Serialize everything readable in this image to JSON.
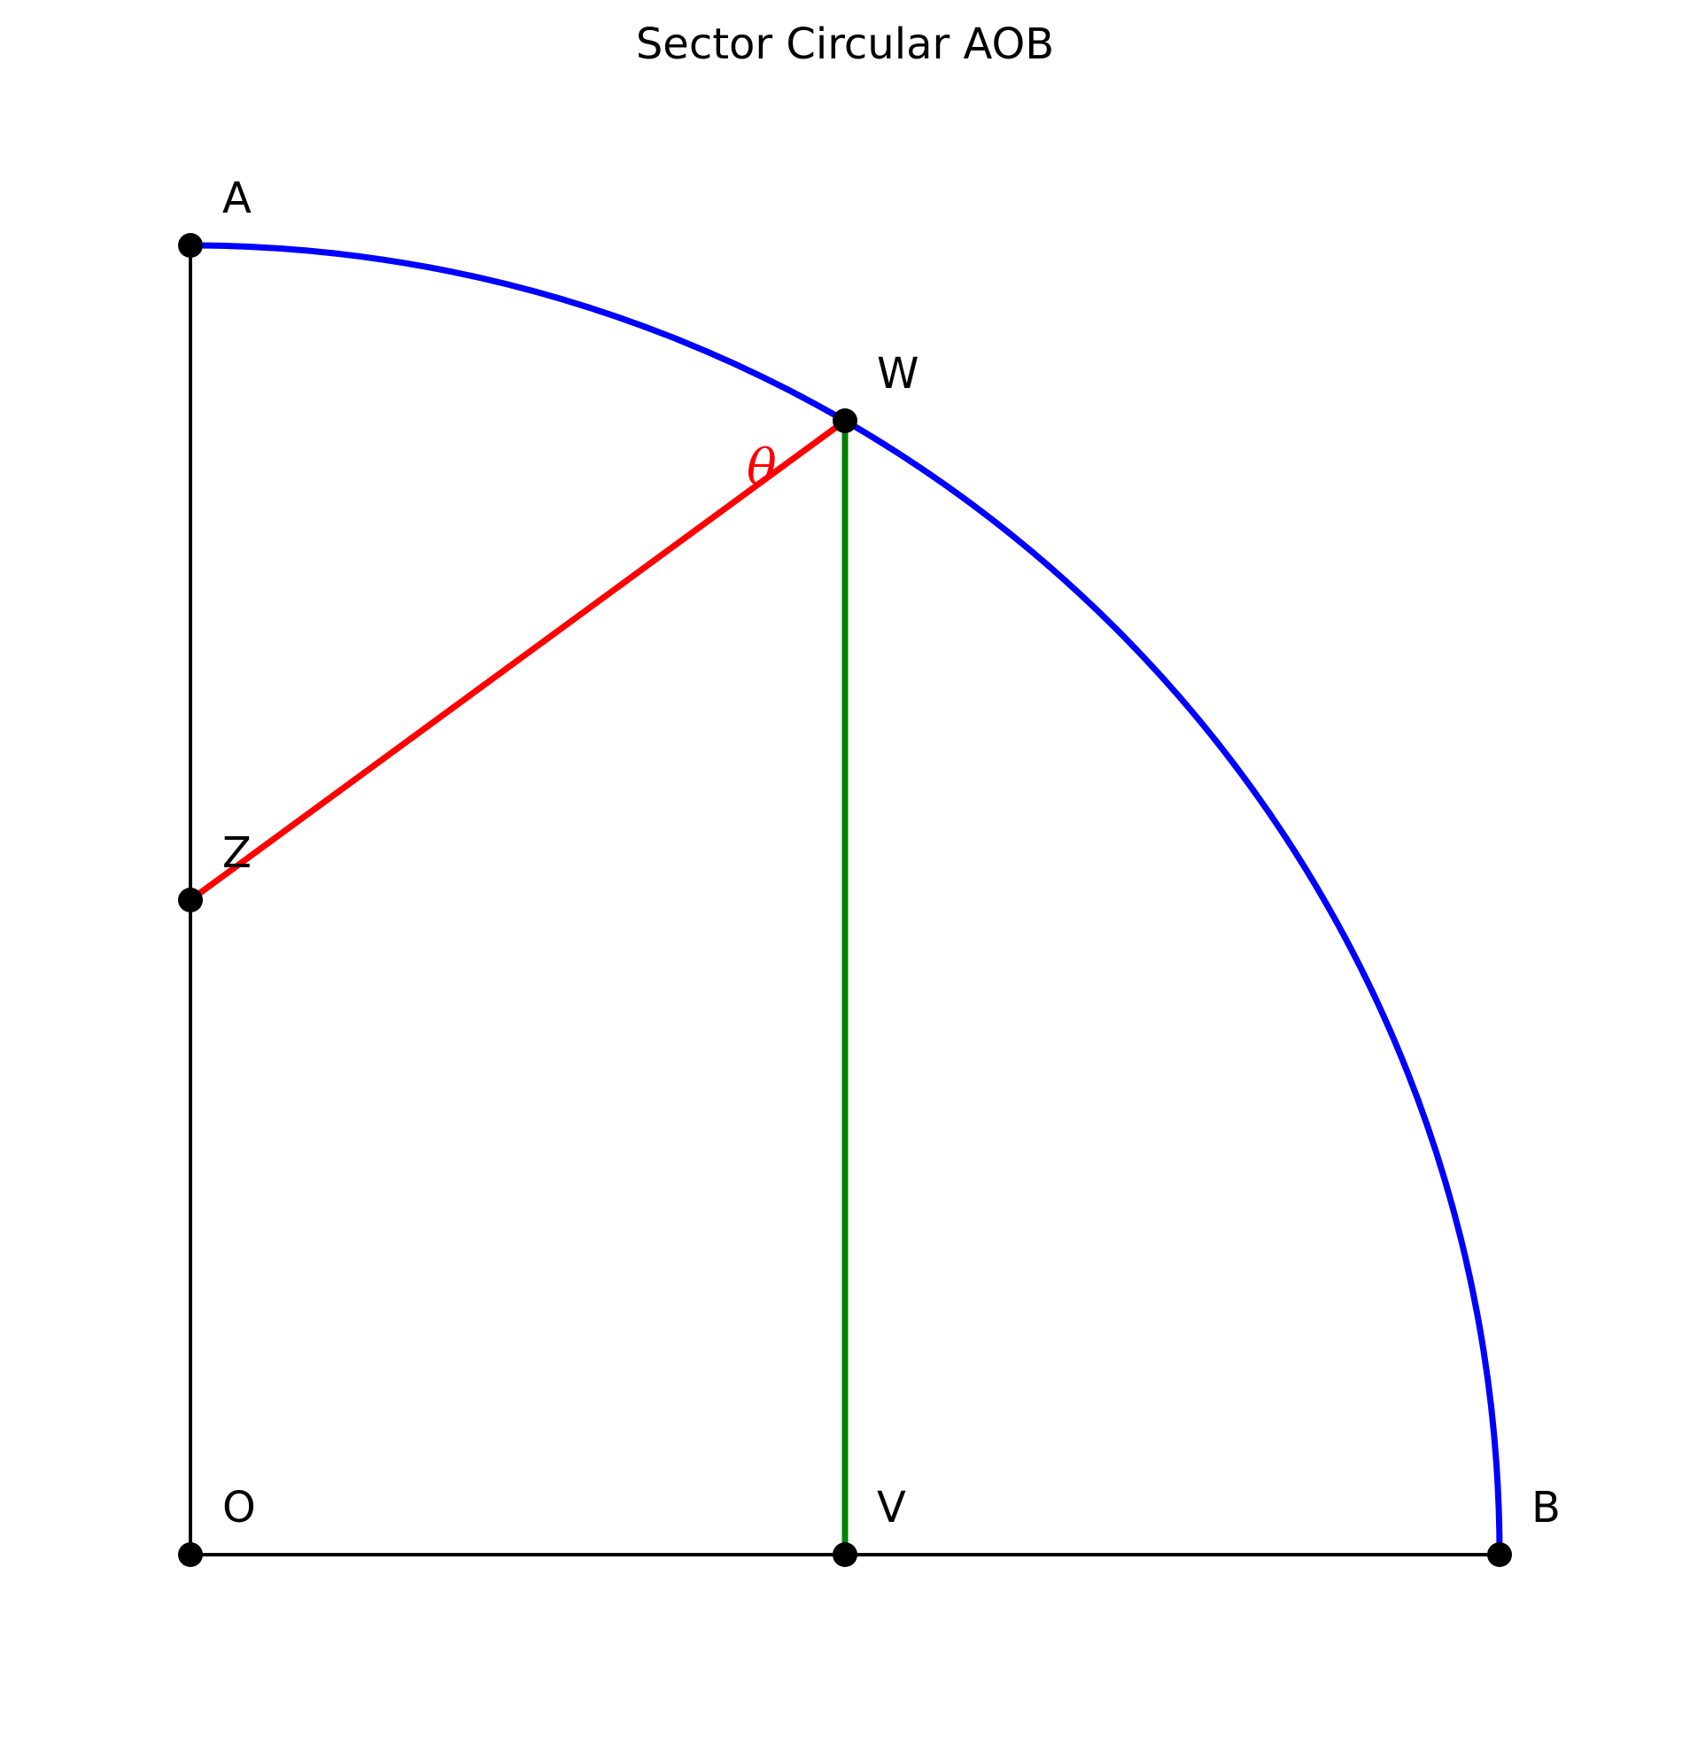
{
  "title": "Sector Circular AOB",
  "colors": {
    "arc": "#0000ff",
    "segment_ZW": "#ff0000",
    "segment_WV": "#008000",
    "radii": "#000000",
    "points": "#000000",
    "angle_label": "#ff0000"
  },
  "diagram": {
    "type": "circular-sector",
    "sector": "AOB",
    "central_angle_deg": 90,
    "points": {
      "O": "O",
      "A": "A",
      "B": "B",
      "W": "W",
      "V": "V",
      "Z": "Z"
    },
    "angle_label": "θ"
  }
}
